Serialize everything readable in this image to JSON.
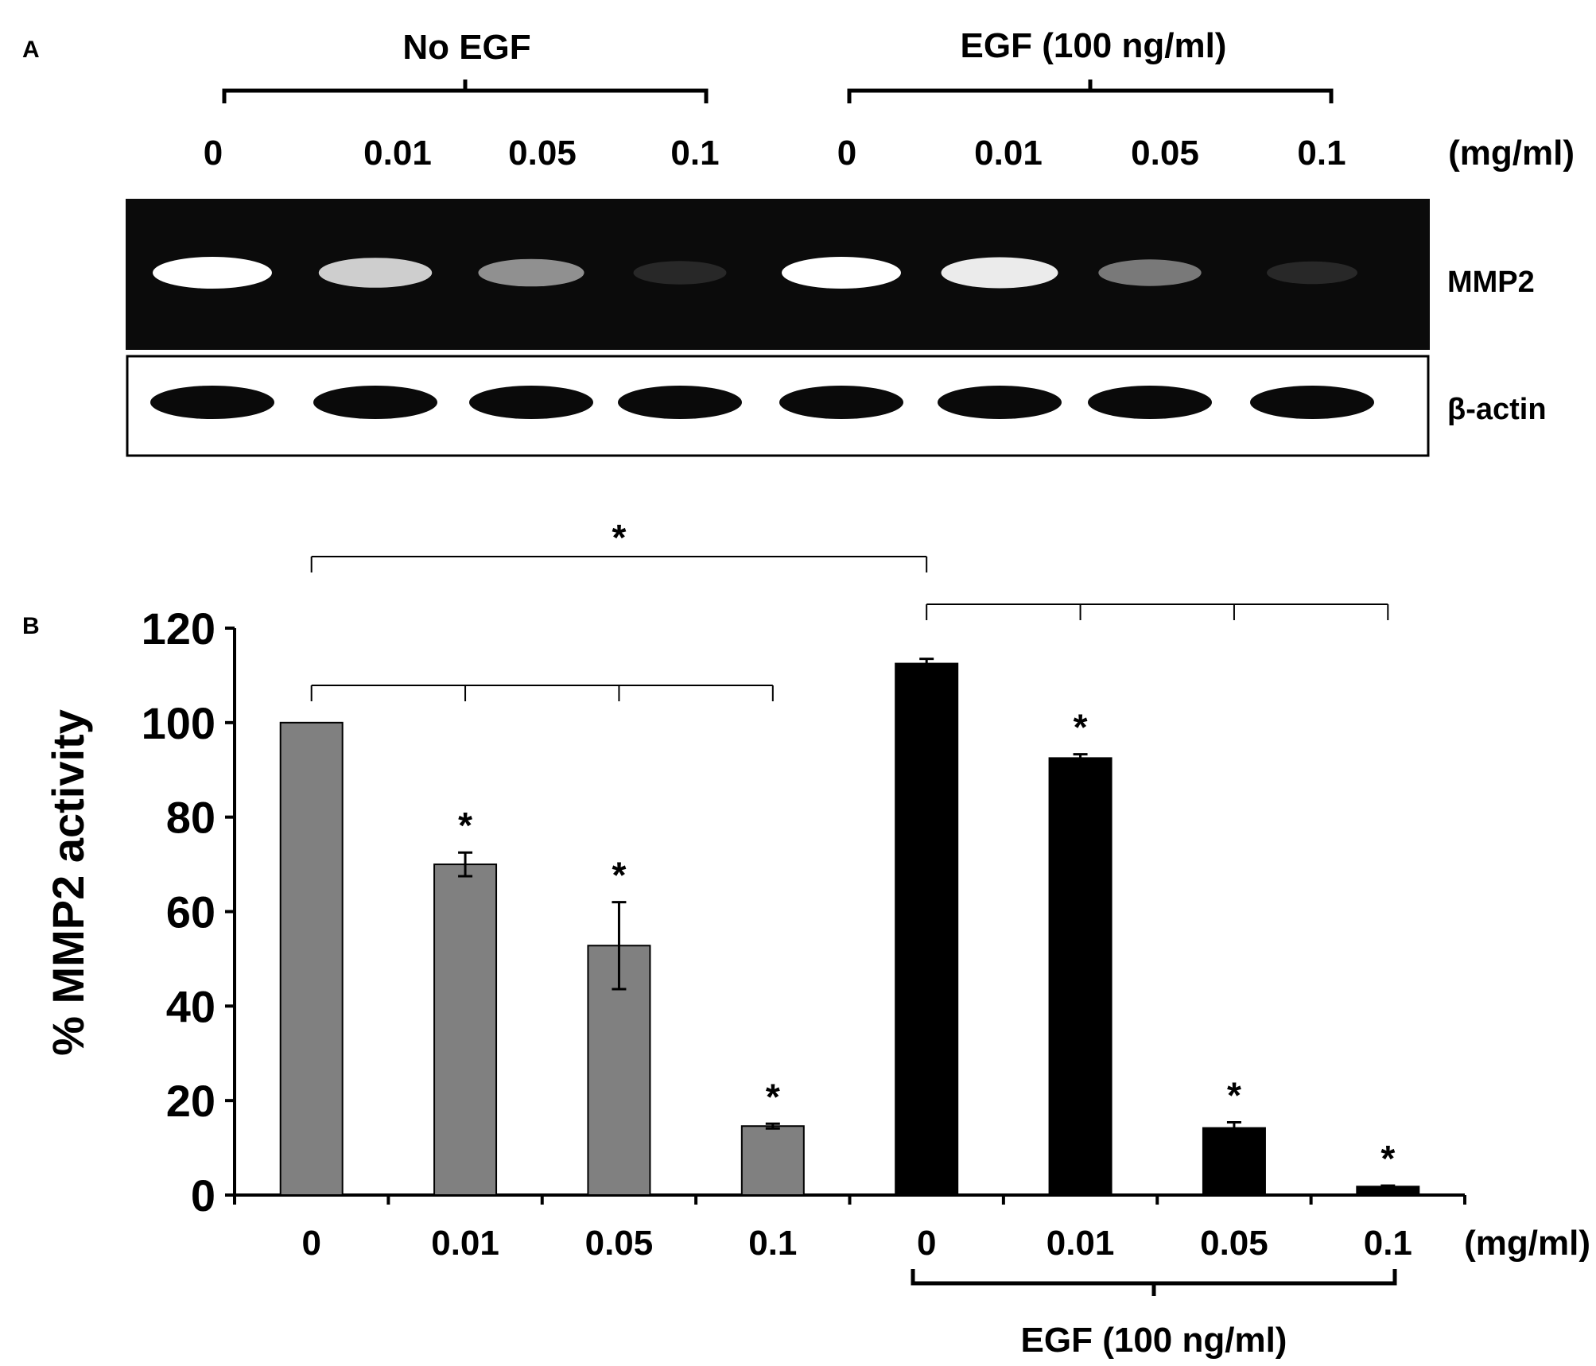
{
  "panel_a": {
    "label": "A",
    "group_no_egf": "No EGF",
    "group_egf": "EGF (100 ng/ml)",
    "lane_labels": [
      "0",
      "0.01",
      "0.05",
      "0.1",
      "0",
      "0.01",
      "0.05",
      "0.1"
    ],
    "unit": "(mg/ml)",
    "blots": [
      {
        "name": "MMP2",
        "type": "zymogram",
        "intensities": [
          1.0,
          0.8,
          0.55,
          0.12,
          1.0,
          0.92,
          0.45,
          0.04
        ]
      },
      {
        "name": "β-actin",
        "type": "western",
        "intensities": [
          1,
          1,
          1,
          1,
          1,
          1,
          1,
          1
        ]
      }
    ]
  },
  "panel_b": {
    "label": "B",
    "egf_label": "EGF (100 ng/ml)",
    "unit": "(mg/ml)",
    "bar_colors": {
      "no_egf": "#808080",
      "egf": "#000000"
    }
  },
  "chart_data": {
    "type": "bar",
    "categories": [
      "0",
      "0.01",
      "0.05",
      "0.1",
      "0",
      "0.01",
      "0.05",
      "0.1"
    ],
    "values": [
      100,
      70,
      52.8,
      14.6,
      112.5,
      92.5,
      14.2,
      1.8
    ],
    "errors": [
      0,
      2.5,
      9.2,
      0.5,
      1.0,
      0.8,
      1.2,
      0.2
    ],
    "groups": [
      "No EGF",
      "No EGF",
      "No EGF",
      "No EGF",
      "EGF (100 ng/ml)",
      "EGF (100 ng/ml)",
      "EGF (100 ng/ml)",
      "EGF (100 ng/ml)"
    ],
    "significance": [
      "",
      "*",
      "*",
      "*",
      "",
      "*",
      "*",
      "*"
    ],
    "comparison_star": "*",
    "xlabel": "",
    "ylabel": "% MMP2 activity",
    "ylim": [
      0,
      120
    ],
    "yticks": [
      0,
      20,
      40,
      60,
      80,
      100,
      120
    ],
    "grid": false
  }
}
